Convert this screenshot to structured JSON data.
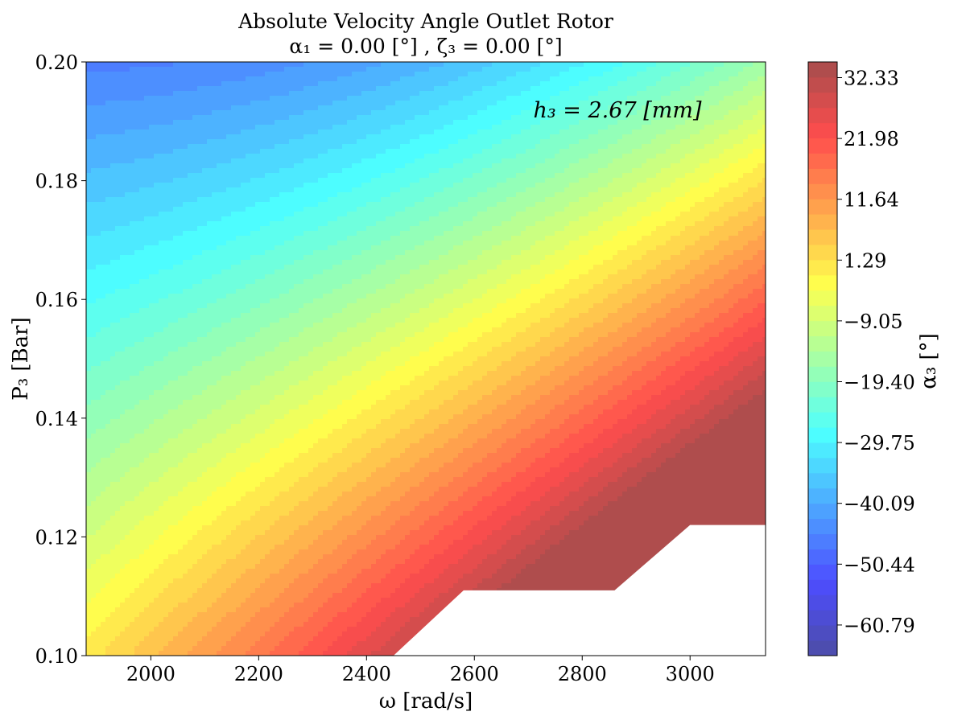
{
  "chart_data": {
    "type": "contourf",
    "title": "Absolute Velocity Angle Outlet Rotor",
    "subtitle": "α₁ = 0.00 [°] , ζ₃ = 0.00 [°]",
    "xlabel": "ω [rad/s]",
    "ylabel": "P₃ [Bar]",
    "annotation": "h₃ = 2.67 [mm]",
    "colorbar_label": "α₃ [°]",
    "colormap": "jet",
    "alpha": 0.7,
    "xlim": [
      1880,
      3140
    ],
    "ylim": [
      0.1,
      0.2
    ],
    "x_ticks": [
      "2000",
      "2200",
      "2400",
      "2600",
      "2800",
      "3000"
    ],
    "y_ticks": [
      "0.10",
      "0.12",
      "0.14",
      "0.16",
      "0.18",
      "0.20"
    ],
    "colorbar_range": [
      -66.0,
      35.0
    ],
    "colorbar_ticks": [
      "32.33",
      "21.98",
      "11.64",
      "1.29",
      "−9.05",
      "−19.40",
      "−29.75",
      "−40.09",
      "−50.44",
      "−60.79"
    ],
    "colorbar_levels": 39,
    "corner_values": {
      "x1880_p0.20": -46.0,
      "x1880_p0.10": 0.0,
      "x3140_p0.20": 14.0,
      "x3140_p0.125": 32.0
    },
    "no_data_region": [
      [
        2450,
        0.1
      ],
      [
        2580,
        0.111
      ],
      [
        2860,
        0.111
      ],
      [
        3000,
        0.122
      ],
      [
        3140,
        0.122
      ],
      [
        3140,
        0.1
      ]
    ],
    "grid": false
  }
}
